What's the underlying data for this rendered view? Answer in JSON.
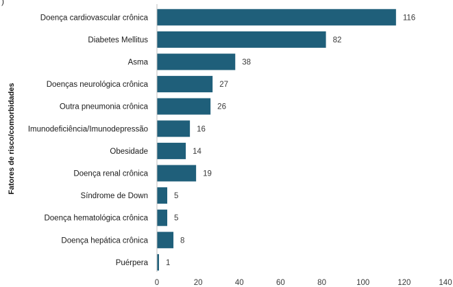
{
  "chart_data": {
    "type": "bar",
    "orientation": "horizontal",
    "categories": [
      "Doença cardiovascular crônica",
      "Diabetes Mellitus",
      "Asma",
      "Doenças neurológica crônica",
      "Outra pneumonia crônica",
      "Imunodeficiência/Imunodepressão",
      "Obesidade",
      "Doença renal crônica",
      "Síndrome de Down",
      "Doença hematológica crônica",
      "Doença hepática crônica",
      "Puérpera"
    ],
    "values": [
      116,
      82,
      38,
      27,
      26,
      16,
      14,
      19,
      5,
      5,
      8,
      1
    ],
    "xlim": [
      0,
      140
    ],
    "xticks": [
      "0",
      "20",
      "40",
      "60",
      "80",
      "100",
      "120",
      "140"
    ],
    "ylabel": "Fatores de risco/comorbidades",
    "xlabel": "",
    "grid": false,
    "legend": "none",
    "bar_color": "#1f5f7a",
    "partial_label": ")"
  }
}
